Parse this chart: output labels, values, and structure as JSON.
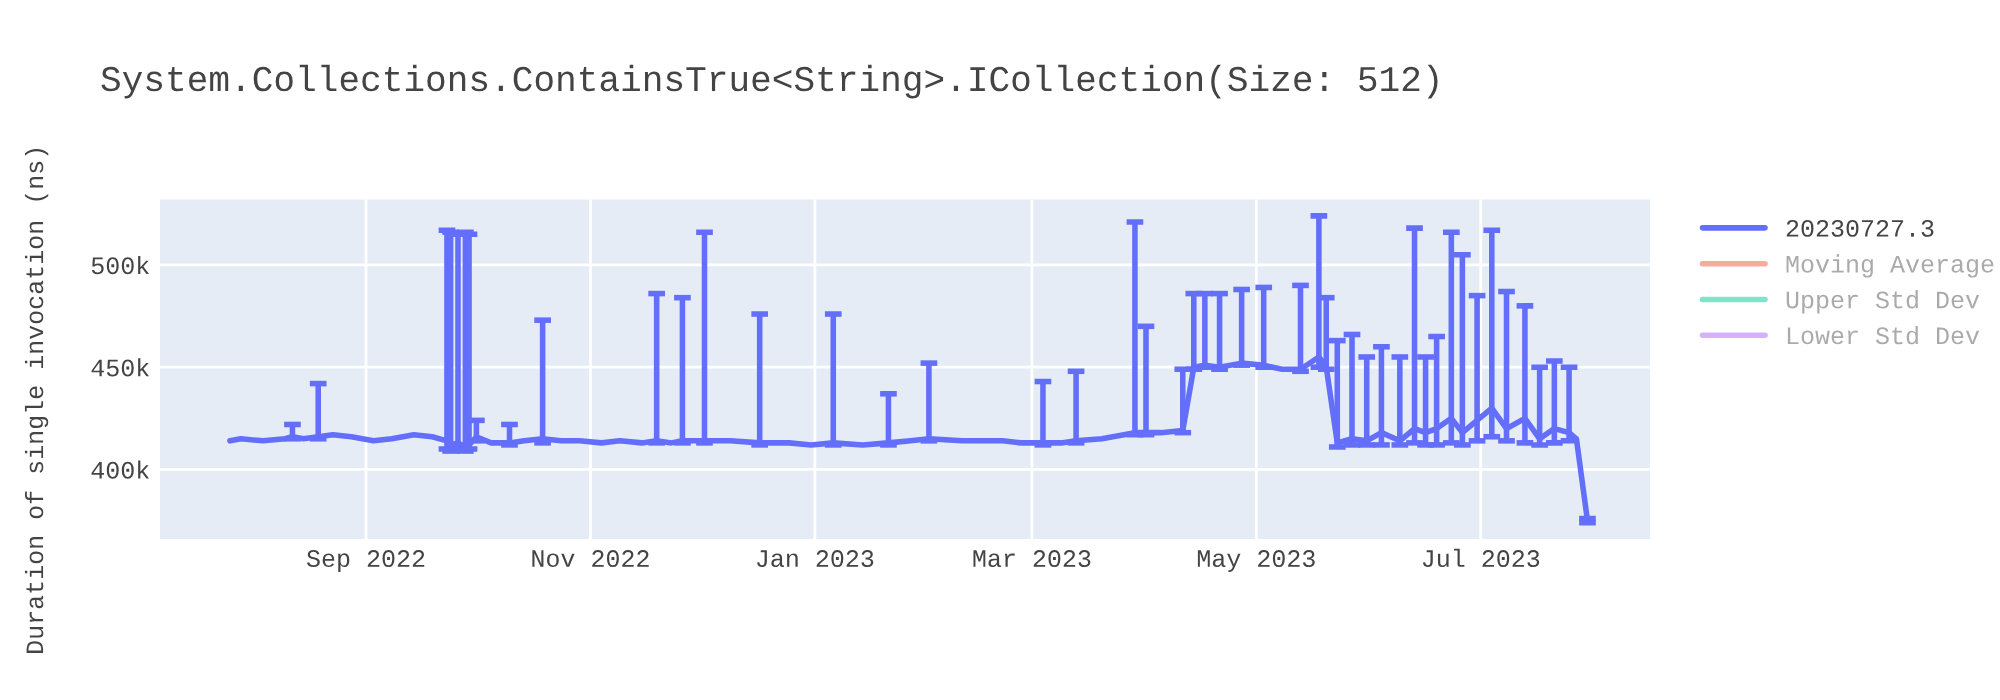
{
  "chart_data": {
    "type": "line",
    "title": "System.Collections.ContainsTrue<String>.ICollection(Size: 512)",
    "ylabel": "Duration of single invocation (ns)",
    "xlim": [
      "2022-07-07",
      "2023-08-16"
    ],
    "ylim": [
      366000,
      532000
    ],
    "xticks": [
      {
        "value": "2022-09-01",
        "label": "Sep 2022"
      },
      {
        "value": "2022-11-01",
        "label": "Nov 2022"
      },
      {
        "value": "2023-01-01",
        "label": "Jan 2023"
      },
      {
        "value": "2023-03-01",
        "label": "Mar 2023"
      },
      {
        "value": "2023-05-01",
        "label": "May 2023"
      },
      {
        "value": "2023-07-01",
        "label": "Jul 2023"
      }
    ],
    "yticks": [
      {
        "value": 400000,
        "label": "400k"
      },
      {
        "value": 450000,
        "label": "450k"
      },
      {
        "value": 500000,
        "label": "500k"
      }
    ],
    "grid": true,
    "legend": "top right",
    "marker": "none",
    "line_style": "solid",
    "series": [
      {
        "name": "20230727.3",
        "color": "#636efa",
        "x": [
          "2022-07-26",
          "2022-07-29",
          "2022-08-04",
          "2022-08-10",
          "2022-08-12",
          "2022-08-15",
          "2022-08-19",
          "2022-08-23",
          "2022-08-28",
          "2022-09-03",
          "2022-09-08",
          "2022-09-14",
          "2022-09-19",
          "2022-09-23",
          "2022-09-24",
          "2022-09-26",
          "2022-09-28",
          "2022-09-29",
          "2022-10-01",
          "2022-10-05",
          "2022-10-10",
          "2022-10-14",
          "2022-10-19",
          "2022-10-24",
          "2022-10-29",
          "2022-11-04",
          "2022-11-09",
          "2022-11-15",
          "2022-11-19",
          "2022-11-23",
          "2022-11-26",
          "2022-12-02",
          "2022-12-09",
          "2022-12-17",
          "2022-12-25",
          "2022-12-31",
          "2023-01-06",
          "2023-01-14",
          "2023-01-21",
          "2023-01-27",
          "2023-02-01",
          "2023-02-10",
          "2023-02-21",
          "2023-02-26",
          "2023-03-04",
          "2023-03-09",
          "2023-03-13",
          "2023-03-20",
          "2023-03-26",
          "2023-03-29",
          "2023-04-01",
          "2023-04-05",
          "2023-04-11",
          "2023-04-14",
          "2023-04-17",
          "2023-04-21",
          "2023-04-27",
          "2023-05-03",
          "2023-05-08",
          "2023-05-13",
          "2023-05-18",
          "2023-05-20",
          "2023-05-23",
          "2023-05-27",
          "2023-05-31",
          "2023-06-04",
          "2023-06-09",
          "2023-06-13",
          "2023-06-16",
          "2023-06-19",
          "2023-06-23",
          "2023-06-26",
          "2023-06-30",
          "2023-07-04",
          "2023-07-08",
          "2023-07-13",
          "2023-07-17",
          "2023-07-21",
          "2023-07-25",
          "2023-07-27",
          "2023-07-30"
        ],
        "values": [
          414000,
          415000,
          414000,
          415000,
          416000,
          415000,
          416000,
          417000,
          416000,
          414000,
          415000,
          417000,
          416000,
          414000,
          412000,
          413000,
          411000,
          412000,
          416000,
          413000,
          413000,
          414000,
          415000,
          414000,
          414000,
          413000,
          414000,
          413000,
          414000,
          413000,
          414000,
          414000,
          414000,
          413000,
          413000,
          412000,
          413000,
          412000,
          413000,
          414000,
          415000,
          414000,
          414000,
          413000,
          413000,
          413000,
          414000,
          415000,
          417000,
          418000,
          418000,
          418000,
          419000,
          450000,
          451000,
          450000,
          452000,
          451000,
          449000,
          449000,
          455000,
          450000,
          413000,
          415000,
          414000,
          418000,
          414000,
          420000,
          418000,
          420000,
          425000,
          418000,
          424000,
          430000,
          420000,
          425000,
          415000,
          420000,
          418000,
          415000,
          375000
        ],
        "errors": [
          null,
          null,
          null,
          null,
          [
            415000,
            422000
          ],
          null,
          [
            415000,
            442000
          ],
          null,
          null,
          null,
          null,
          null,
          null,
          [
            410000,
            517000
          ],
          [
            409000,
            516000
          ],
          [
            410000,
            515000
          ],
          [
            409000,
            516000
          ],
          [
            410000,
            515000
          ],
          [
            414000,
            424000
          ],
          null,
          [
            412000,
            422000
          ],
          null,
          [
            413000,
            473000
          ],
          null,
          null,
          null,
          null,
          null,
          [
            413000,
            486000
          ],
          null,
          [
            413000,
            484000
          ],
          [
            413000,
            516000
          ],
          null,
          [
            412000,
            476000
          ],
          null,
          null,
          [
            412000,
            476000
          ],
          null,
          [
            412000,
            437000
          ],
          null,
          [
            414000,
            452000
          ],
          null,
          null,
          null,
          [
            412000,
            443000
          ],
          null,
          [
            413000,
            448000
          ],
          null,
          null,
          [
            417000,
            521000
          ],
          [
            417000,
            470000
          ],
          null,
          [
            418000,
            449000
          ],
          [
            449000,
            486000
          ],
          [
            450000,
            486000
          ],
          [
            449000,
            486000
          ],
          [
            451000,
            488000
          ],
          [
            450000,
            489000
          ],
          null,
          [
            448000,
            490000
          ],
          [
            450000,
            524000
          ],
          [
            449000,
            484000
          ],
          [
            411000,
            463000
          ],
          [
            412000,
            466000
          ],
          [
            412000,
            455000
          ],
          [
            412000,
            460000
          ],
          [
            412000,
            455000
          ],
          [
            413000,
            518000
          ],
          [
            412000,
            455000
          ],
          [
            412000,
            465000
          ],
          [
            413000,
            516000
          ],
          [
            412000,
            505000
          ],
          [
            414000,
            485000
          ],
          [
            416000,
            517000
          ],
          [
            414000,
            487000
          ],
          [
            413000,
            480000
          ],
          [
            412000,
            450000
          ],
          [
            413000,
            453000
          ],
          [
            414000,
            450000
          ],
          null,
          [
            374000,
            376000
          ]
        ]
      },
      {
        "name": "Moving Average",
        "color": "#ef553b"
      },
      {
        "name": "Upper Std Dev",
        "color": "#00cc96"
      },
      {
        "name": "Lower Std Dev",
        "color": "#ab63fa"
      }
    ]
  }
}
